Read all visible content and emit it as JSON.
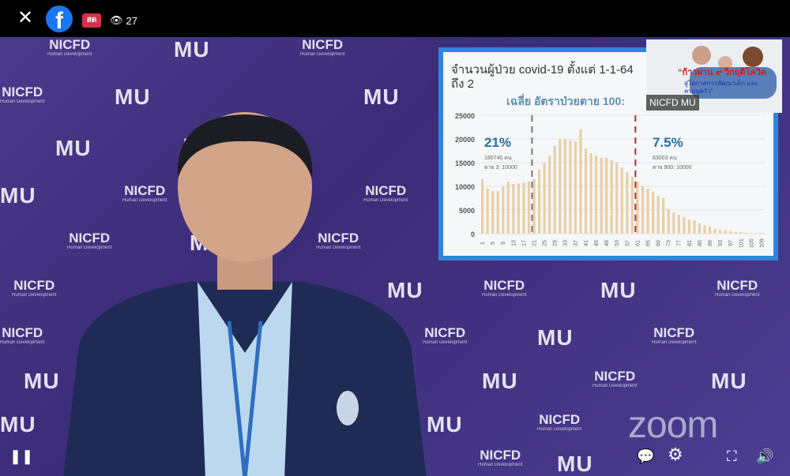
{
  "topbar": {
    "close_icon": "close-icon",
    "platform_icon": "facebook-logo",
    "live_badge": "สด",
    "viewer_count": "27"
  },
  "video": {
    "background_logos": [
      "MU",
      "NICFD"
    ],
    "logo_subtext": "Human Development",
    "watermark": "zoom",
    "inset": {
      "headline": "“ก้าวผ่าน ๙ วิกฤติโควิด",
      "subline": "สู่โอกาสการพัฒนาเด็ก และครอบครัว”",
      "label": "NICFD MU"
    },
    "slide": {
      "title": "จำนวนผู้ป่วย covid-19 ตั้งแต่ 1-1-64 ถึง 2",
      "subtitle": "เฉลี่ย อัตราป่วยตาย 100:",
      "annotations": [
        {
          "percent": "21%",
          "line1": "180740 คน",
          "line2": "ตาย 3: 10000"
        },
        {
          "percent": "7.5%",
          "line1": "63003 คน",
          "line2": "ตาย 900: 10000"
        }
      ]
    }
  },
  "chart_data": {
    "type": "bar",
    "title": "จำนวนผู้ป่วย covid-19 ตั้งแต่ 1-1-64 ถึง 2",
    "ylim": [
      0,
      25000
    ],
    "yticks": [
      "0",
      "5000",
      "10000",
      "15000",
      "20000",
      "25000"
    ],
    "xticks": [
      "1",
      "5",
      "9",
      "13",
      "17",
      "21",
      "25",
      "29",
      "33",
      "37",
      "41",
      "45",
      "49",
      "53",
      "57",
      "61",
      "65",
      "69",
      "73",
      "77",
      "81",
      "85",
      "89",
      "93",
      "97",
      "101",
      "105",
      "109"
    ],
    "x_start": 1,
    "x_step": 2,
    "values": [
      11500,
      9500,
      9000,
      9000,
      10000,
      11000,
      10500,
      10600,
      10800,
      11000,
      11500,
      13500,
      15000,
      16500,
      18500,
      20000,
      20000,
      19800,
      19500,
      22000,
      18000,
      17000,
      16500,
      16000,
      16000,
      15500,
      15000,
      14000,
      13000,
      12000,
      11000,
      10000,
      9500,
      8800,
      8000,
      7500,
      5200,
      4500,
      4000,
      3500,
      3000,
      2800,
      2200,
      1800,
      1500,
      1000,
      800,
      700,
      600,
      400,
      300,
      200,
      150,
      100,
      80
    ],
    "vlines": [
      21,
      61
    ],
    "colors": {
      "bar": "#e8cfa6",
      "vline_left": "#777777",
      "vline_right": "#a83232"
    },
    "grid": true
  },
  "controls": {
    "pause_icon": "pause-icon",
    "chat_icon": "chat-icon",
    "settings_icon": "gear-icon",
    "fullscreen_icon": "fullscreen-icon",
    "volume_icon": "volume-icon"
  }
}
